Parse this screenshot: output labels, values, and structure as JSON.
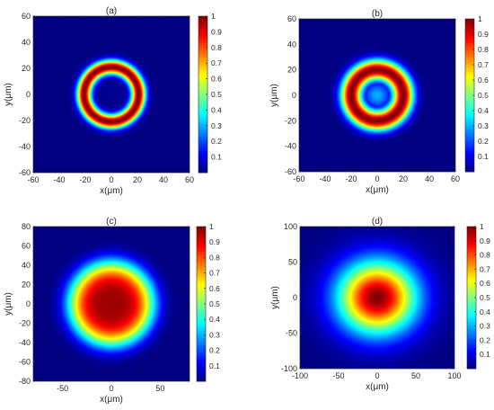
{
  "chart_data": [
    {
      "type": "heatmap",
      "label": "(a)",
      "xlabel": "x(μm)",
      "ylabel": "y(μm)",
      "xlim": [
        -60,
        60
      ],
      "ylim": [
        -60,
        60
      ],
      "xticks": [
        -60,
        -40,
        -20,
        0,
        20,
        40,
        60
      ],
      "yticks": [
        -60,
        -40,
        -20,
        0,
        20,
        40,
        60
      ],
      "colorbar": {
        "min": 0,
        "max": 1,
        "ticks": [
          0.1,
          0.2,
          0.3,
          0.4,
          0.5,
          0.6,
          0.7,
          0.8,
          0.9,
          1
        ]
      },
      "profile": {
        "shape": "ring",
        "peak_radius": 21,
        "width": 5.5,
        "center_value": 0.02
      }
    },
    {
      "type": "heatmap",
      "label": "(b)",
      "xlabel": "x(μm)",
      "ylabel": "y(μm)",
      "xlim": [
        -60,
        60
      ],
      "ylim": [
        -60,
        60
      ],
      "xticks": [
        -60,
        -40,
        -20,
        0,
        20,
        40,
        60
      ],
      "yticks": [
        -60,
        -40,
        -20,
        0,
        20,
        40,
        60
      ],
      "colorbar": {
        "min": 0,
        "max": 1,
        "ticks": [
          0.1,
          0.2,
          0.3,
          0.4,
          0.5,
          0.6,
          0.7,
          0.8,
          0.9,
          1
        ]
      },
      "profile": {
        "shape": "ring",
        "peak_radius": 20,
        "width": 8,
        "center_value": 0.3
      }
    },
    {
      "type": "heatmap",
      "label": "(c)",
      "xlabel": "x(μm)",
      "ylabel": "y(μm)",
      "xlim": [
        -80,
        80
      ],
      "ylim": [
        -80,
        80
      ],
      "xticks": [
        -50,
        0,
        50
      ],
      "yticks": [
        -80,
        -60,
        -40,
        -20,
        0,
        20,
        40,
        60,
        80
      ],
      "colorbar": {
        "min": 0,
        "max": 1,
        "ticks": [
          0.1,
          0.2,
          0.3,
          0.4,
          0.5,
          0.6,
          0.7,
          0.8,
          0.9,
          1
        ]
      },
      "profile": {
        "shape": "flat-top",
        "half_max_radius": 40,
        "center_value": 0.97
      }
    },
    {
      "type": "heatmap",
      "label": "(d)",
      "xlabel": "x(μm)",
      "ylabel": "y(μm)",
      "xlim": [
        -100,
        100
      ],
      "ylim": [
        -100,
        100
      ],
      "xticks": [
        -100,
        -50,
        0,
        50,
        100
      ],
      "yticks": [
        -100,
        -50,
        0,
        50,
        100
      ],
      "colorbar": {
        "min": 0,
        "max": 1,
        "ticks": [
          0.1,
          0.2,
          0.3,
          0.4,
          0.5,
          0.6,
          0.7,
          0.8,
          0.9,
          1
        ]
      },
      "profile": {
        "shape": "gaussian",
        "half_max_radius": 42,
        "center_value": 1
      }
    }
  ]
}
